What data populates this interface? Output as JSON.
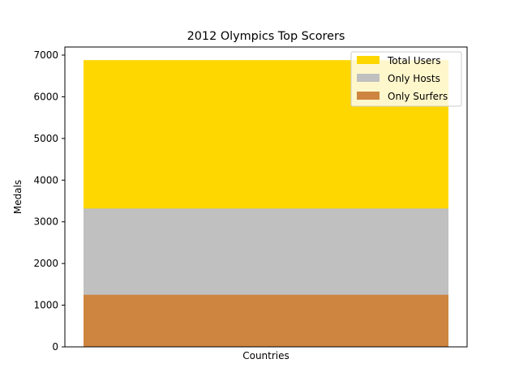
{
  "chart_data": {
    "type": "bar",
    "stacked": false,
    "title": "2012 Olympics Top Scorers",
    "xlabel": "Countries",
    "ylabel": "Medals",
    "categories": [
      ""
    ],
    "ylim": [
      0,
      7000
    ],
    "yticks": [
      0,
      1000,
      2000,
      3000,
      4000,
      5000,
      6000,
      7000
    ],
    "grid": false,
    "legend_position": "top-right",
    "series": [
      {
        "name": "Total Users",
        "values": [
          6880
        ],
        "color": "#FFD700"
      },
      {
        "name": "Only Hosts",
        "values": [
          3320
        ],
        "color": "#C0C0C0"
      },
      {
        "name": "Only Surfers",
        "values": [
          1250
        ],
        "color": "#CD853F"
      }
    ]
  }
}
